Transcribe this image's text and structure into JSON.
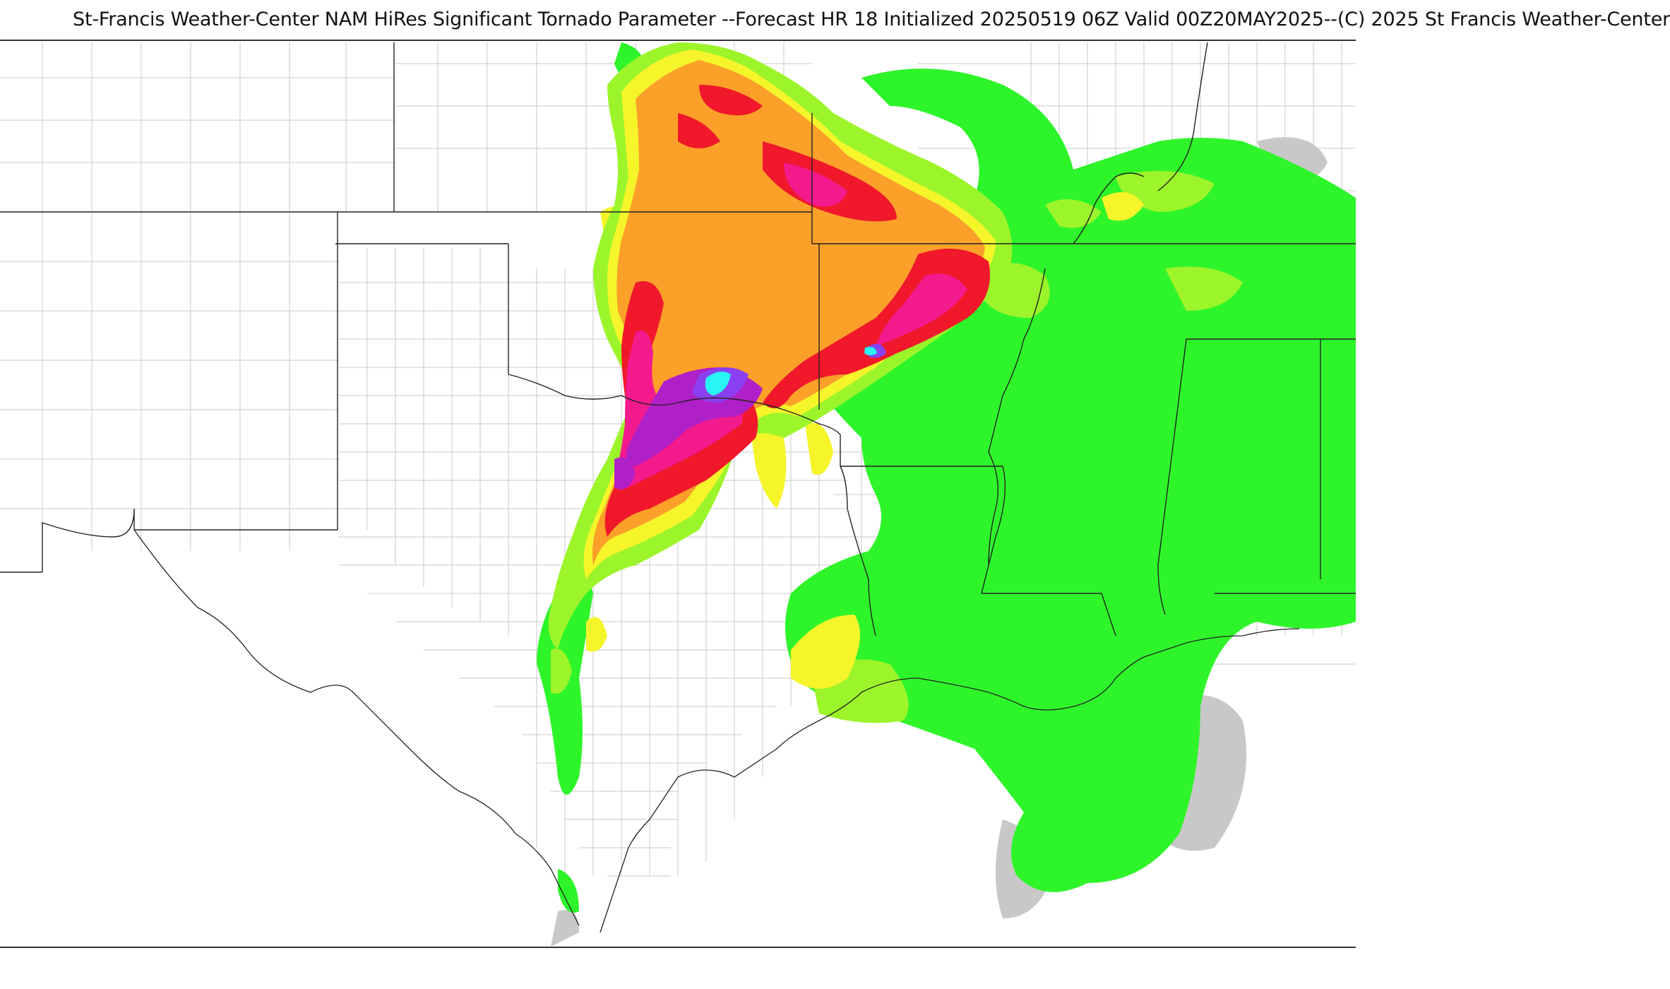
{
  "header": {
    "title": "St-Francis Weather-Center NAM HiRes Significant Tornado Parameter --Forecast HR 18 Initialized 20250519 06Z Valid 00Z20MAY2025--(C) 2025 St Francis Weather-Center"
  },
  "map": {
    "product": "NAM HiRes Significant Tornado Parameter",
    "colors": {
      "background": "#ffffff",
      "county_lines": "#c8c8c8",
      "state_lines": "#222222",
      "trace": "#c8c8c8",
      "level_1": "#2ef52a",
      "level_2": "#9cf52a",
      "level_3": "#f5f52a",
      "level_4": "#fca02a",
      "level_5": "#f0182a",
      "level_6": "#f21a8c",
      "level_7": "#b020c8",
      "level_8": "#8a40f0",
      "level_9": "#28f5f5"
    }
  }
}
